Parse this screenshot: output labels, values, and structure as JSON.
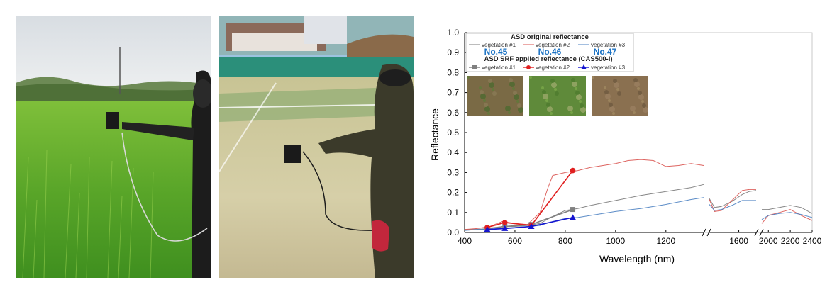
{
  "chart_data": {
    "type": "line",
    "xlabel": "Wavelength (nm)",
    "ylabel": "Reflectance",
    "ylim": [
      0,
      1.0
    ],
    "y_ticks": [
      "0.0",
      "0.1",
      "0.2",
      "0.3",
      "0.4",
      "0.5",
      "0.6",
      "0.7",
      "0.8",
      "0.9",
      "1.0"
    ],
    "x_tick_labels": [
      "400",
      "600",
      "800",
      "1000",
      "1200",
      "1600",
      "2000",
      "2200",
      "2400"
    ],
    "axis_breaks": true,
    "legend": {
      "title_original": "ASD original reflectance",
      "title_srf": "ASD SRF applied reflectance (CAS500-I)",
      "sample_numbers": [
        "No.45",
        "No.46",
        "No.47"
      ]
    },
    "colors": {
      "vegetation_1": "#7a7a7a",
      "vegetation_2": "#d9534f",
      "vegetation_3": "#4a7fc1",
      "srf_1": "#808080",
      "srf_2": "#e02020",
      "srf_3": "#1414d0",
      "number_blue": "#1a72c4"
    },
    "series": [
      {
        "name": "vegetation #1",
        "group": "original",
        "segments": [
          [
            [
              400,
              0.015
            ],
            [
              450,
              0.016
            ],
            [
              500,
              0.02
            ],
            [
              550,
              0.03
            ],
            [
              600,
              0.03
            ],
            [
              650,
              0.035
            ],
            [
              700,
              0.045
            ],
            [
              750,
              0.08
            ],
            [
              800,
              0.11
            ],
            [
              850,
              0.12
            ],
            [
              900,
              0.135
            ],
            [
              1000,
              0.16
            ],
            [
              1100,
              0.185
            ],
            [
              1200,
              0.205
            ],
            [
              1300,
              0.225
            ],
            [
              1350,
              0.24
            ]
          ],
          [
            [
              1430,
              0.17
            ],
            [
              1460,
              0.125
            ],
            [
              1500,
              0.13
            ],
            [
              1560,
              0.155
            ],
            [
              1620,
              0.19
            ],
            [
              1660,
              0.205
            ],
            [
              1700,
              0.21
            ]
          ],
          [
            [
              1940,
              0.115
            ],
            [
              2000,
              0.115
            ],
            [
              2100,
              0.125
            ],
            [
              2200,
              0.135
            ],
            [
              2300,
              0.125
            ],
            [
              2400,
              0.095
            ]
          ]
        ]
      },
      {
        "name": "vegetation #2",
        "group": "original",
        "segments": [
          [
            [
              400,
              0.015
            ],
            [
              450,
              0.02
            ],
            [
              500,
              0.03
            ],
            [
              550,
              0.055
            ],
            [
              600,
              0.045
            ],
            [
              650,
              0.04
            ],
            [
              700,
              0.1
            ],
            [
              730,
              0.22
            ],
            [
              750,
              0.285
            ],
            [
              800,
              0.3
            ],
            [
              850,
              0.31
            ],
            [
              900,
              0.325
            ],
            [
              1000,
              0.345
            ],
            [
              1050,
              0.36
            ],
            [
              1100,
              0.365
            ],
            [
              1150,
              0.36
            ],
            [
              1200,
              0.33
            ],
            [
              1250,
              0.335
            ],
            [
              1300,
              0.345
            ],
            [
              1350,
              0.335
            ]
          ],
          [
            [
              1430,
              0.165
            ],
            [
              1460,
              0.105
            ],
            [
              1500,
              0.11
            ],
            [
              1560,
              0.16
            ],
            [
              1620,
              0.21
            ],
            [
              1660,
              0.215
            ],
            [
              1700,
              0.215
            ]
          ],
          [
            [
              1940,
              0.045
            ],
            [
              2000,
              0.085
            ],
            [
              2100,
              0.1
            ],
            [
              2200,
              0.115
            ],
            [
              2300,
              0.085
            ],
            [
              2400,
              0.06
            ]
          ]
        ]
      },
      {
        "name": "vegetation #3",
        "group": "original",
        "segments": [
          [
            [
              400,
              0.01
            ],
            [
              450,
              0.015
            ],
            [
              500,
              0.017
            ],
            [
              550,
              0.022
            ],
            [
              600,
              0.025
            ],
            [
              650,
              0.03
            ],
            [
              700,
              0.035
            ],
            [
              750,
              0.055
            ],
            [
              800,
              0.07
            ],
            [
              850,
              0.075
            ],
            [
              900,
              0.085
            ],
            [
              1000,
              0.105
            ],
            [
              1100,
              0.12
            ],
            [
              1200,
              0.14
            ],
            [
              1300,
              0.165
            ],
            [
              1350,
              0.175
            ]
          ],
          [
            [
              1430,
              0.14
            ],
            [
              1460,
              0.11
            ],
            [
              1500,
              0.115
            ],
            [
              1560,
              0.135
            ],
            [
              1620,
              0.16
            ],
            [
              1660,
              0.16
            ],
            [
              1700,
              0.16
            ]
          ],
          [
            [
              1940,
              0.065
            ],
            [
              2000,
              0.085
            ],
            [
              2100,
              0.095
            ],
            [
              2200,
              0.1
            ],
            [
              2300,
              0.09
            ],
            [
              2400,
              0.075
            ]
          ]
        ]
      },
      {
        "name": "vegetation #1",
        "group": "srf",
        "marker": "square",
        "points": [
          [
            490,
            0.02
          ],
          [
            560,
            0.03
          ],
          [
            665,
            0.04
          ],
          [
            830,
            0.115
          ]
        ]
      },
      {
        "name": "vegetation #2",
        "group": "srf",
        "marker": "circle",
        "points": [
          [
            490,
            0.025
          ],
          [
            560,
            0.05
          ],
          [
            665,
            0.035
          ],
          [
            830,
            0.31
          ]
        ]
      },
      {
        "name": "vegetation #3",
        "group": "srf",
        "marker": "triangle",
        "points": [
          [
            490,
            0.015
          ],
          [
            560,
            0.02
          ],
          [
            665,
            0.03
          ],
          [
            830,
            0.075
          ]
        ]
      }
    ]
  },
  "photos": {
    "field_alt": "Operator measuring reflectance in a green rice paddy",
    "court_alt": "Operator measuring reflectance on a grass sports court"
  }
}
